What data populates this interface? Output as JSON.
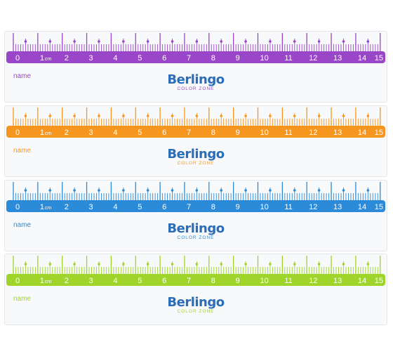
{
  "rulers": [
    {
      "color": "#9a46c8",
      "name_label": "name",
      "brand": "Berlingo",
      "subbrand": "COLOR ZONE"
    },
    {
      "color": "#f7961e",
      "name_label": "name",
      "brand": "Berlingo",
      "subbrand": "COLOR ZONE"
    },
    {
      "color": "#2b8bd8",
      "name_label": "name",
      "brand": "Berlingo",
      "subbrand": "COLOR ZONE"
    },
    {
      "color": "#9fd42a",
      "name_label": "name",
      "brand": "Berlingo",
      "subbrand": "COLOR ZONE"
    }
  ],
  "scale": {
    "numbers": [
      "0",
      "1",
      "2",
      "3",
      "4",
      "5",
      "6",
      "7",
      "8",
      "9",
      "10",
      "11",
      "12",
      "13",
      "14",
      "15"
    ],
    "unit": "cm"
  },
  "brand_color": "#2a6db8"
}
